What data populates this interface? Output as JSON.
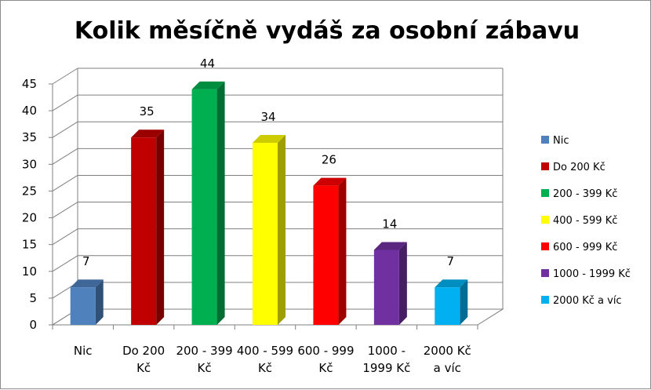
{
  "chart_data": {
    "type": "bar",
    "title": "Kolik měsíčně vydáš za osobní zábavu",
    "categories": [
      [
        "Nic"
      ],
      [
        "Do 200",
        "Kč"
      ],
      [
        "200 - 399",
        "Kč"
      ],
      [
        "400 - 599",
        "Kč"
      ],
      [
        "600 - 999",
        "Kč"
      ],
      [
        "1000 -",
        "1999 Kč"
      ],
      [
        "2000 Kč",
        "a víc"
      ]
    ],
    "values": [
      7,
      35,
      44,
      34,
      26,
      14,
      7
    ],
    "colors": [
      "#4f81bd",
      "#c00000",
      "#00b050",
      "#ffff00",
      "#ff0000",
      "#7030a0",
      "#00b0f0"
    ],
    "ylim": [
      0,
      45
    ],
    "yticks": [
      0,
      5,
      10,
      15,
      20,
      25,
      30,
      35,
      40,
      45
    ],
    "grid": true,
    "legend": {
      "placement": "right",
      "entries": [
        "Nic",
        "Do 200 Kč",
        "200 - 399 Kč",
        "400 - 599 Kč",
        "600 - 999 Kč",
        "1000 - 1999 Kč",
        "2000 Kč a víc"
      ]
    }
  }
}
